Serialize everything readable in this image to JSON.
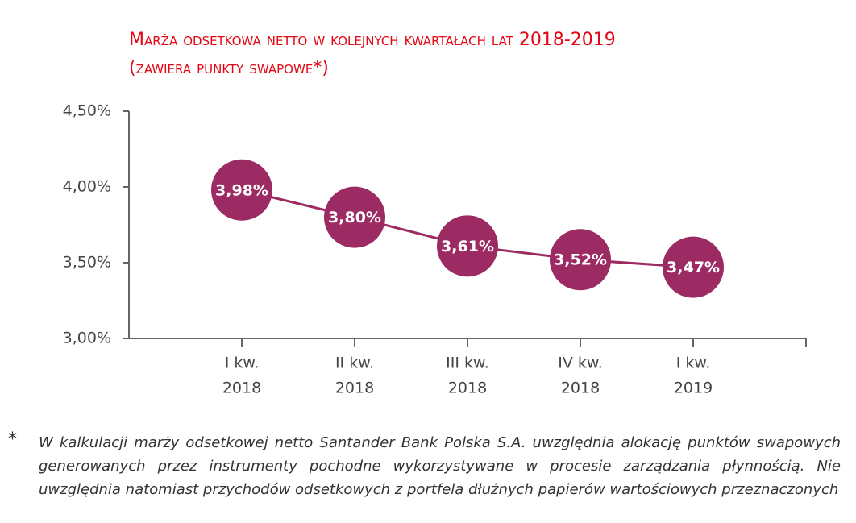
{
  "chart_data": {
    "type": "line",
    "title": "Marża odsetkowa netto w kolejnych kwartałach lat 2018-2019",
    "subtitle": "(zawiera punkty swapowe*)",
    "categories": [
      [
        "I kw.",
        "2018"
      ],
      [
        "II kw.",
        "2018"
      ],
      [
        "III kw.",
        "2018"
      ],
      [
        "IV kw.",
        "2018"
      ],
      [
        "I kw.",
        "2019"
      ]
    ],
    "values": [
      3.98,
      3.8,
      3.61,
      3.52,
      3.47
    ],
    "value_labels": [
      "3,98%",
      "3,80%",
      "3,61%",
      "3,52%",
      "3,47%"
    ],
    "color": "#9c2a63",
    "ylim": [
      3.0,
      4.5
    ],
    "yticks": [
      {
        "value": 3.0,
        "label": "3,00%"
      },
      {
        "value": 3.5,
        "label": "3,50%"
      },
      {
        "value": 4.0,
        "label": "4,00%"
      },
      {
        "value": 4.5,
        "label": "4,50%"
      }
    ],
    "grid": false
  },
  "footnote": {
    "marker": "*",
    "text": "W kalkulacji marży odsetkowej netto Santander Bank Polska S.A. uwzględnia alokację punktów swapowych generowanych przez instrumenty pochodne wykorzystywane w procesie zarządzania płynnością. Nie uwzględnia natomiast przychodów odsetkowych z portfela dłużnych papierów wartościowych przeznaczonych"
  }
}
